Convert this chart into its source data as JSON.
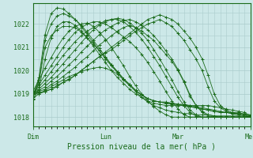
{
  "xlabel": "Pression niveau de la mer( hPa )",
  "ylim": [
    1017.6,
    1022.9
  ],
  "bg_color": "#cce8e8",
  "grid_color": "#aacccc",
  "line_color": "#1a6b1a",
  "marker": "+",
  "yticks": [
    1018,
    1019,
    1020,
    1021,
    1022
  ],
  "xtick_labels": [
    "Dim",
    "Lun",
    "Mar",
    "Mer"
  ],
  "xtick_pos": [
    0,
    72,
    144,
    216
  ],
  "total_hours": 216,
  "series": [
    {
      "x": [
        0,
        6,
        12,
        18,
        24,
        30,
        36,
        42,
        48,
        54,
        60,
        66,
        72,
        78,
        84,
        90,
        96,
        102,
        108,
        114,
        120,
        126,
        132,
        138,
        144,
        150,
        156,
        162,
        168,
        174,
        180,
        186,
        192,
        198,
        204,
        210,
        216
      ],
      "y": [
        1019.0,
        1019.05,
        1019.1,
        1019.2,
        1019.35,
        1019.5,
        1019.65,
        1019.8,
        1020.0,
        1020.2,
        1020.4,
        1020.6,
        1020.75,
        1020.9,
        1021.1,
        1021.3,
        1021.5,
        1021.7,
        1021.85,
        1022.0,
        1022.1,
        1022.2,
        1022.05,
        1021.9,
        1021.6,
        1021.3,
        1020.9,
        1020.5,
        1020.0,
        1019.3,
        1018.7,
        1018.4,
        1018.25,
        1018.15,
        1018.1,
        1018.05,
        1018.0
      ]
    },
    {
      "x": [
        0,
        6,
        12,
        18,
        24,
        30,
        36,
        42,
        48,
        54,
        60,
        66,
        72,
        78,
        84,
        90,
        96,
        102,
        108,
        114,
        120,
        126,
        132,
        138,
        144,
        150,
        156,
        162,
        168,
        174,
        180,
        186,
        192,
        198,
        204,
        210,
        216
      ],
      "y": [
        1019.0,
        1019.1,
        1019.2,
        1019.4,
        1019.55,
        1019.75,
        1019.95,
        1020.15,
        1020.4,
        1020.6,
        1020.85,
        1021.1,
        1021.3,
        1021.5,
        1021.7,
        1021.85,
        1021.95,
        1021.85,
        1021.7,
        1021.5,
        1021.3,
        1021.0,
        1020.7,
        1020.4,
        1020.0,
        1019.5,
        1018.9,
        1018.5,
        1018.25,
        1018.1,
        1018.05,
        1018.0,
        1018.0,
        1018.0,
        1018.0,
        1018.0,
        1018.0
      ]
    },
    {
      "x": [
        0,
        6,
        12,
        18,
        24,
        30,
        36,
        42,
        48,
        54,
        60,
        66,
        72,
        78,
        84,
        90,
        96,
        102,
        108,
        114,
        120,
        126,
        132,
        138,
        144,
        150,
        156,
        162,
        168,
        174,
        180,
        186,
        192,
        198,
        204,
        210,
        216
      ],
      "y": [
        1019.0,
        1019.15,
        1019.3,
        1019.55,
        1019.75,
        1020.0,
        1020.25,
        1020.5,
        1020.8,
        1021.05,
        1021.3,
        1021.55,
        1021.75,
        1021.9,
        1022.05,
        1022.15,
        1022.2,
        1022.1,
        1021.95,
        1021.75,
        1021.5,
        1021.2,
        1020.85,
        1020.5,
        1020.05,
        1019.55,
        1018.95,
        1018.5,
        1018.2,
        1018.05,
        1018.0,
        1018.0,
        1018.0,
        1018.0,
        1018.0,
        1018.0,
        1018.0
      ]
    },
    {
      "x": [
        0,
        6,
        12,
        18,
        24,
        30,
        36,
        42,
        48,
        54,
        60,
        66,
        72,
        78,
        84,
        90,
        96,
        102,
        108,
        114,
        120,
        126,
        132,
        138,
        144,
        150,
        156,
        162,
        168,
        174,
        180,
        186,
        192,
        198,
        204,
        210,
        216
      ],
      "y": [
        1019.0,
        1019.2,
        1019.45,
        1019.7,
        1020.0,
        1020.3,
        1020.6,
        1020.9,
        1021.2,
        1021.5,
        1021.75,
        1021.95,
        1022.1,
        1022.2,
        1022.25,
        1022.2,
        1022.05,
        1021.85,
        1021.6,
        1021.3,
        1020.9,
        1020.5,
        1020.05,
        1019.6,
        1019.1,
        1018.65,
        1018.3,
        1018.1,
        1018.0,
        1018.0,
        1018.0,
        1018.0,
        1018.0,
        1018.0,
        1018.0,
        1018.0,
        1018.0
      ]
    },
    {
      "x": [
        0,
        6,
        12,
        18,
        24,
        30,
        36,
        42,
        48,
        54,
        60,
        66,
        72,
        78,
        84,
        90,
        96,
        102,
        108,
        114,
        120,
        126,
        132,
        138,
        144,
        150,
        156,
        162,
        168,
        174,
        180,
        186,
        192,
        198,
        204,
        210,
        216
      ],
      "y": [
        1019.0,
        1019.3,
        1019.6,
        1019.95,
        1020.3,
        1020.65,
        1020.95,
        1021.25,
        1021.5,
        1021.7,
        1021.85,
        1022.0,
        1022.15,
        1022.2,
        1022.2,
        1022.1,
        1021.9,
        1021.65,
        1021.35,
        1021.0,
        1020.6,
        1020.2,
        1019.75,
        1019.3,
        1018.85,
        1018.5,
        1018.2,
        1018.05,
        1018.0,
        1018.0,
        1018.0,
        1018.0,
        1018.0,
        1018.0,
        1018.0,
        1018.0,
        1018.0
      ]
    },
    {
      "x": [
        0,
        6,
        12,
        18,
        24,
        30,
        36,
        42,
        48,
        54,
        60,
        66,
        72,
        78,
        84,
        90,
        96,
        102,
        108,
        114,
        120,
        126,
        132,
        138,
        144,
        150,
        156,
        162,
        168,
        174,
        180,
        186,
        192,
        198,
        204,
        210,
        216
      ],
      "y": [
        1019.0,
        1019.4,
        1019.8,
        1020.2,
        1020.6,
        1021.0,
        1021.35,
        1021.65,
        1021.85,
        1022.0,
        1022.1,
        1022.1,
        1022.0,
        1021.85,
        1021.65,
        1021.45,
        1021.25,
        1021.0,
        1020.7,
        1020.35,
        1019.95,
        1019.55,
        1019.1,
        1018.7,
        1018.35,
        1018.1,
        1018.0,
        1018.0,
        1018.0,
        1018.0,
        1018.0,
        1018.0,
        1018.0,
        1018.0,
        1018.0,
        1018.0,
        1018.0
      ]
    },
    {
      "x": [
        0,
        6,
        12,
        18,
        24,
        30,
        36,
        42,
        48,
        54,
        60,
        66,
        72,
        78,
        84,
        90,
        96,
        102,
        108,
        114,
        120,
        126,
        132,
        138,
        144,
        150,
        156,
        162,
        168,
        174,
        180,
        186,
        192,
        198,
        204,
        210,
        216
      ],
      "y": [
        1019.1,
        1019.6,
        1020.1,
        1020.55,
        1021.0,
        1021.4,
        1021.7,
        1021.9,
        1022.0,
        1022.05,
        1021.9,
        1021.65,
        1021.35,
        1021.0,
        1020.6,
        1020.2,
        1019.75,
        1019.35,
        1019.0,
        1018.7,
        1018.45,
        1018.25,
        1018.1,
        1018.0,
        1018.0,
        1018.0,
        1018.0,
        1018.0,
        1018.0,
        1018.0,
        1018.0,
        1018.0,
        1018.0,
        1018.0,
        1018.0,
        1018.0,
        1018.0
      ]
    },
    {
      "x": [
        0,
        6,
        12,
        18,
        24,
        30,
        36,
        42,
        48,
        54,
        60,
        66,
        72,
        78,
        84,
        90,
        96,
        102,
        108,
        114,
        120,
        126,
        132,
        138,
        144,
        150,
        156,
        162,
        168,
        174,
        180,
        186,
        192,
        198,
        204,
        210,
        216
      ],
      "y": [
        1018.8,
        1019.0,
        1019.15,
        1019.3,
        1019.45,
        1019.6,
        1019.75,
        1019.85,
        1019.95,
        1020.05,
        1020.1,
        1020.15,
        1020.1,
        1020.0,
        1019.85,
        1019.6,
        1019.35,
        1019.1,
        1018.85,
        1018.65,
        1018.5,
        1018.4,
        1018.3,
        1018.25,
        1018.2,
        1018.15,
        1018.15,
        1018.1,
        1018.1,
        1018.1,
        1018.05,
        1018.05,
        1018.05,
        1018.05,
        1018.05,
        1018.05,
        1018.0
      ]
    },
    {
      "x": [
        0,
        6,
        12,
        18,
        24,
        30,
        36,
        42,
        48,
        54,
        60,
        66,
        72,
        78,
        84,
        90,
        96,
        102,
        108,
        114,
        120,
        126,
        132,
        138,
        144,
        150,
        156,
        162,
        168,
        174,
        180,
        186,
        192,
        198,
        204,
        210,
        216
      ],
      "y": [
        1018.8,
        1019.5,
        1021.0,
        1021.5,
        1021.75,
        1021.9,
        1021.9,
        1021.85,
        1021.65,
        1021.4,
        1021.15,
        1020.85,
        1020.55,
        1020.25,
        1019.95,
        1019.65,
        1019.4,
        1019.15,
        1018.95,
        1018.8,
        1018.7,
        1018.65,
        1018.65,
        1018.6,
        1018.55,
        1018.5,
        1018.45,
        1018.4,
        1018.35,
        1018.3,
        1018.25,
        1018.2,
        1018.2,
        1018.15,
        1018.15,
        1018.1,
        1018.05
      ]
    },
    {
      "x": [
        0,
        6,
        12,
        18,
        24,
        30,
        36,
        42,
        48,
        54,
        60,
        66,
        72,
        78,
        84,
        90,
        96,
        102,
        108,
        114,
        120,
        126,
        132,
        138,
        144,
        150,
        156,
        162,
        168,
        174,
        180,
        186,
        192,
        198,
        204,
        210,
        216
      ],
      "y": [
        1018.85,
        1019.6,
        1021.3,
        1022.0,
        1022.35,
        1022.45,
        1022.35,
        1022.2,
        1021.95,
        1021.65,
        1021.3,
        1020.95,
        1020.6,
        1020.25,
        1019.95,
        1019.65,
        1019.4,
        1019.15,
        1018.95,
        1018.8,
        1018.7,
        1018.65,
        1018.6,
        1018.6,
        1018.55,
        1018.55,
        1018.5,
        1018.45,
        1018.4,
        1018.35,
        1018.3,
        1018.25,
        1018.2,
        1018.2,
        1018.15,
        1018.15,
        1018.1
      ]
    },
    {
      "x": [
        0,
        6,
        12,
        18,
        24,
        30,
        36,
        42,
        48,
        54,
        60,
        66,
        72,
        78,
        84,
        90,
        96,
        102,
        108,
        114,
        120,
        126,
        132,
        138,
        144,
        150,
        156,
        162,
        168,
        174,
        180,
        186,
        192,
        198,
        204,
        210,
        216
      ],
      "y": [
        1018.9,
        1019.7,
        1021.55,
        1022.45,
        1022.7,
        1022.65,
        1022.45,
        1022.2,
        1021.9,
        1021.55,
        1021.2,
        1020.85,
        1020.5,
        1020.2,
        1019.9,
        1019.65,
        1019.4,
        1019.15,
        1018.95,
        1018.8,
        1018.7,
        1018.65,
        1018.6,
        1018.55,
        1018.55,
        1018.5,
        1018.45,
        1018.4,
        1018.35,
        1018.3,
        1018.25,
        1018.2,
        1018.2,
        1018.15,
        1018.15,
        1018.1,
        1018.05
      ]
    },
    {
      "x": [
        0,
        6,
        12,
        18,
        24,
        30,
        36,
        42,
        48,
        54,
        60,
        66,
        72,
        78,
        84,
        90,
        96,
        102,
        108,
        114,
        120,
        126,
        132,
        138,
        144,
        150,
        156,
        162,
        168,
        174,
        180,
        186,
        192,
        198,
        204,
        210,
        216
      ],
      "y": [
        1018.75,
        1019.2,
        1020.5,
        1021.4,
        1021.9,
        1022.1,
        1022.1,
        1021.95,
        1021.7,
        1021.4,
        1021.05,
        1020.7,
        1020.35,
        1020.0,
        1019.7,
        1019.45,
        1019.2,
        1019.0,
        1018.85,
        1018.7,
        1018.6,
        1018.55,
        1018.5,
        1018.5,
        1018.5,
        1018.5,
        1018.5,
        1018.5,
        1018.5,
        1018.5,
        1018.45,
        1018.4,
        1018.35,
        1018.3,
        1018.25,
        1018.2,
        1018.05
      ]
    },
    {
      "x": [
        0,
        6,
        12,
        18,
        24,
        30,
        36,
        42,
        48,
        54,
        60,
        66,
        72,
        78,
        84,
        90,
        96,
        102,
        108,
        114,
        120,
        126,
        132,
        138,
        144,
        150,
        156,
        162,
        168,
        174,
        180,
        186,
        192,
        198,
        204,
        210,
        216
      ],
      "y": [
        1019.0,
        1019.0,
        1019.1,
        1019.2,
        1019.3,
        1019.5,
        1019.6,
        1019.8,
        1020.0,
        1020.2,
        1020.4,
        1020.6,
        1020.8,
        1021.0,
        1021.2,
        1021.4,
        1021.6,
        1021.8,
        1022.0,
        1022.2,
        1022.3,
        1022.4,
        1022.3,
        1022.2,
        1022.0,
        1021.7,
        1021.4,
        1021.0,
        1020.5,
        1019.8,
        1019.0,
        1018.5,
        1018.3,
        1018.2,
        1018.2,
        1018.1,
        1018.0
      ]
    }
  ]
}
